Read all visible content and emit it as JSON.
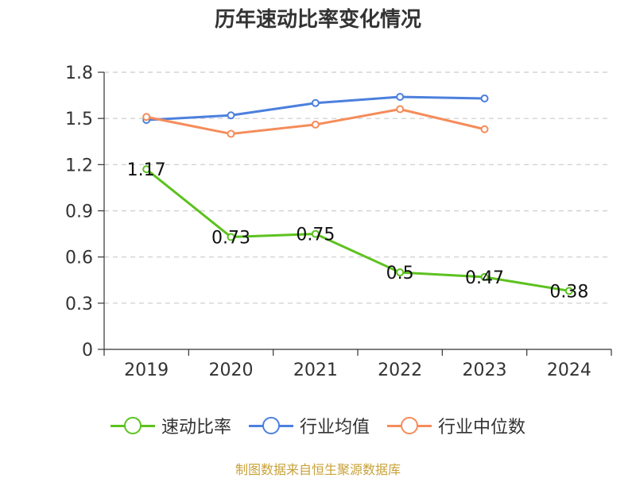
{
  "chart_data": {
    "type": "line",
    "title": "历年速动比率变化情况",
    "categories": [
      "2019",
      "2020",
      "2021",
      "2022",
      "2023",
      "2024"
    ],
    "y_ticks": [
      "0",
      "0.3",
      "0.6",
      "0.9",
      "1.2",
      "1.5",
      "1.8"
    ],
    "ylim": [
      0,
      1.8
    ],
    "grid": true,
    "legend_position": "bottom",
    "series": [
      {
        "name": "速动比率",
        "color": "#5cc21f",
        "values": [
          1.17,
          0.73,
          0.75,
          0.5,
          0.47,
          0.38
        ],
        "labels": [
          "1.17",
          "0.73",
          "0.75",
          "0.5",
          "0.47",
          "0.38"
        ]
      },
      {
        "name": "行业均值",
        "color": "#4c80de",
        "values": [
          1.49,
          1.52,
          1.6,
          1.64,
          1.63,
          null
        ]
      },
      {
        "name": "行业中位数",
        "color": "#f58c5a",
        "values": [
          1.51,
          1.4,
          1.46,
          1.56,
          1.43,
          null
        ]
      }
    ]
  },
  "footer": {
    "source": "制图数据来自恒生聚源数据库"
  }
}
